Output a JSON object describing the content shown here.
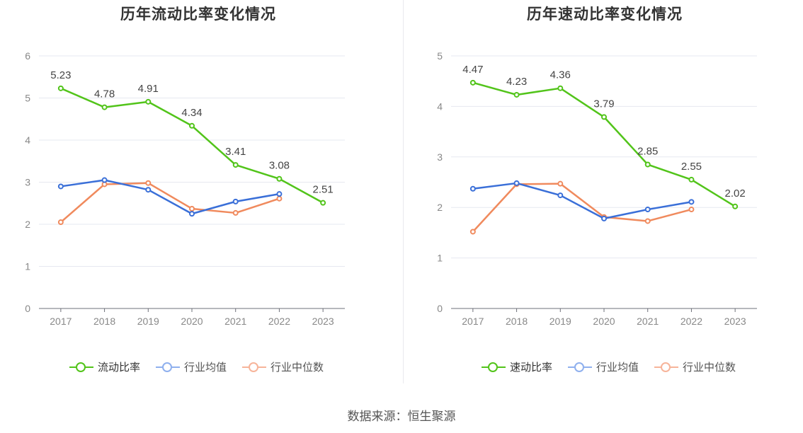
{
  "chart_data": [
    {
      "type": "line",
      "title": "历年流动比率变化情况",
      "categories": [
        "2017",
        "2018",
        "2019",
        "2020",
        "2021",
        "2022",
        "2023"
      ],
      "ylim": [
        0,
        6
      ],
      "yticks": [
        0,
        1,
        2,
        3,
        4,
        5,
        6
      ],
      "grid": true,
      "legend_position": "bottom",
      "series": [
        {
          "name": "流动比率",
          "color": "#52c41a",
          "labels": true,
          "values": [
            5.23,
            4.78,
            4.91,
            4.34,
            3.41,
            3.08,
            2.51
          ]
        },
        {
          "name": "行业均值",
          "color": "#3a6fd8",
          "labels": false,
          "values": [
            2.9,
            3.05,
            2.82,
            2.25,
            2.54,
            2.72,
            null
          ]
        },
        {
          "name": "行业中位数",
          "color": "#f08a5d",
          "labels": false,
          "values": [
            2.05,
            2.95,
            2.98,
            2.37,
            2.27,
            2.61,
            null
          ]
        }
      ]
    },
    {
      "type": "line",
      "title": "历年速动比率变化情况",
      "categories": [
        "2017",
        "2018",
        "2019",
        "2020",
        "2021",
        "2022",
        "2023"
      ],
      "ylim": [
        0,
        5
      ],
      "yticks": [
        0,
        1,
        2,
        3,
        4,
        5
      ],
      "grid": true,
      "legend_position": "bottom",
      "series": [
        {
          "name": "速动比率",
          "color": "#52c41a",
          "labels": true,
          "values": [
            4.47,
            4.23,
            4.36,
            3.79,
            2.85,
            2.55,
            2.02
          ]
        },
        {
          "name": "行业均值",
          "color": "#3a6fd8",
          "labels": false,
          "values": [
            2.37,
            2.48,
            2.24,
            1.78,
            1.96,
            2.11,
            null
          ]
        },
        {
          "name": "行业中位数",
          "color": "#f08a5d",
          "labels": false,
          "values": [
            1.52,
            2.46,
            2.47,
            1.81,
            1.73,
            1.96,
            null
          ]
        }
      ]
    }
  ],
  "footer": {
    "source": "数据来源：恒生聚源"
  }
}
